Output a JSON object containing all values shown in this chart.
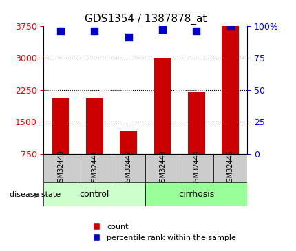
{
  "title": "GDS1354 / 1387878_at",
  "categories": [
    "GSM32440",
    "GSM32441",
    "GSM32442",
    "GSM32443",
    "GSM32444",
    "GSM32445"
  ],
  "bar_values": [
    2050,
    2050,
    1300,
    3000,
    2200,
    3750
  ],
  "percentile_values": [
    96,
    96,
    91,
    97,
    96,
    100
  ],
  "bar_color": "#cc0000",
  "dot_color": "#0000cc",
  "ylim_left": [
    750,
    3750
  ],
  "ylim_right": [
    0,
    100
  ],
  "yticks_left": [
    750,
    1500,
    2250,
    3000,
    3750
  ],
  "yticks_right": [
    0,
    25,
    50,
    75,
    100
  ],
  "ytick_labels_right": [
    "0",
    "25",
    "50",
    "75",
    "100%"
  ],
  "grid_values": [
    1500,
    2250,
    3000
  ],
  "control_group": [
    "GSM32440",
    "GSM32441",
    "GSM32442"
  ],
  "cirrhosis_group": [
    "GSM32443",
    "GSM32444",
    "GSM32445"
  ],
  "control_color": "#ccffcc",
  "cirrhosis_color": "#99ff99",
  "sample_box_color": "#cccccc",
  "background_color": "#ffffff",
  "legend_count_label": "count",
  "legend_percentile_label": "percentile rank within the sample",
  "disease_state_label": "disease state",
  "control_label": "control",
  "cirrhosis_label": "cirrhosis",
  "bar_width": 0.5,
  "dot_size": 60
}
